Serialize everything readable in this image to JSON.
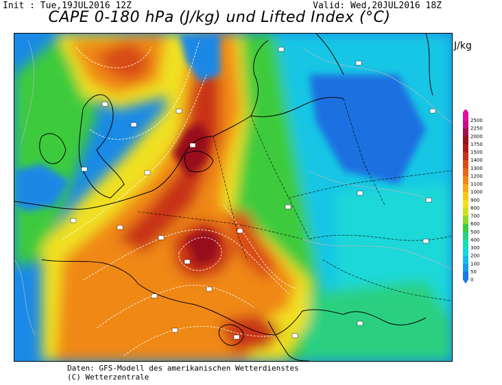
{
  "header": {
    "init": "Init : Tue,19JUL2016 12Z",
    "valid": "Valid: Wed,20JUL2016 18Z",
    "title": "CAPE 0-180 hPa (J/kg) und Lifted Index (°C)"
  },
  "legend": {
    "unit": "J/kg",
    "levels": [
      "0",
      "50",
      "100",
      "200",
      "300",
      "400",
      "500",
      "600",
      "700",
      "800",
      "900",
      "1000",
      "1100",
      "1200",
      "1300",
      "1400",
      "1500",
      "1750",
      "2000",
      "2250",
      "2500"
    ],
    "colors": [
      "#1a77e8",
      "#1b9be8",
      "#15bbe8",
      "#17d8e0",
      "#1ae0b0",
      "#2ad080",
      "#3ccb3c",
      "#8bd82a",
      "#c9e020",
      "#f0e020",
      "#f8c818",
      "#f8a818",
      "#f08818",
      "#e86818",
      "#d84c18",
      "#c83018",
      "#b01818",
      "#98101a",
      "#a0104a",
      "#c80c8a",
      "#e0109c"
    ]
  },
  "footer": {
    "line1": "Daten: GFS-Modell des amerikanischen Wetterdienstes",
    "line2": "(C) Wetterzentrale"
  }
}
